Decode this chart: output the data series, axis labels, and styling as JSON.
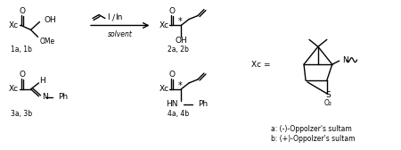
{
  "bg_color": "#ffffff",
  "figsize": [
    4.5,
    1.68
  ],
  "dpi": 100,
  "labels": {
    "1ab": "1a, 1b",
    "2ab": "2a, 2b",
    "3ab": "3a, 3b",
    "4ab": "4a, 4b",
    "reagent1": "I / In",
    "solvent": "solvent",
    "xc_eq": "Xc =",
    "sultam_a": "a: (-)-Oppolzer's sultam",
    "sultam_b": "b: (+)-Oppolzer's sultam"
  }
}
